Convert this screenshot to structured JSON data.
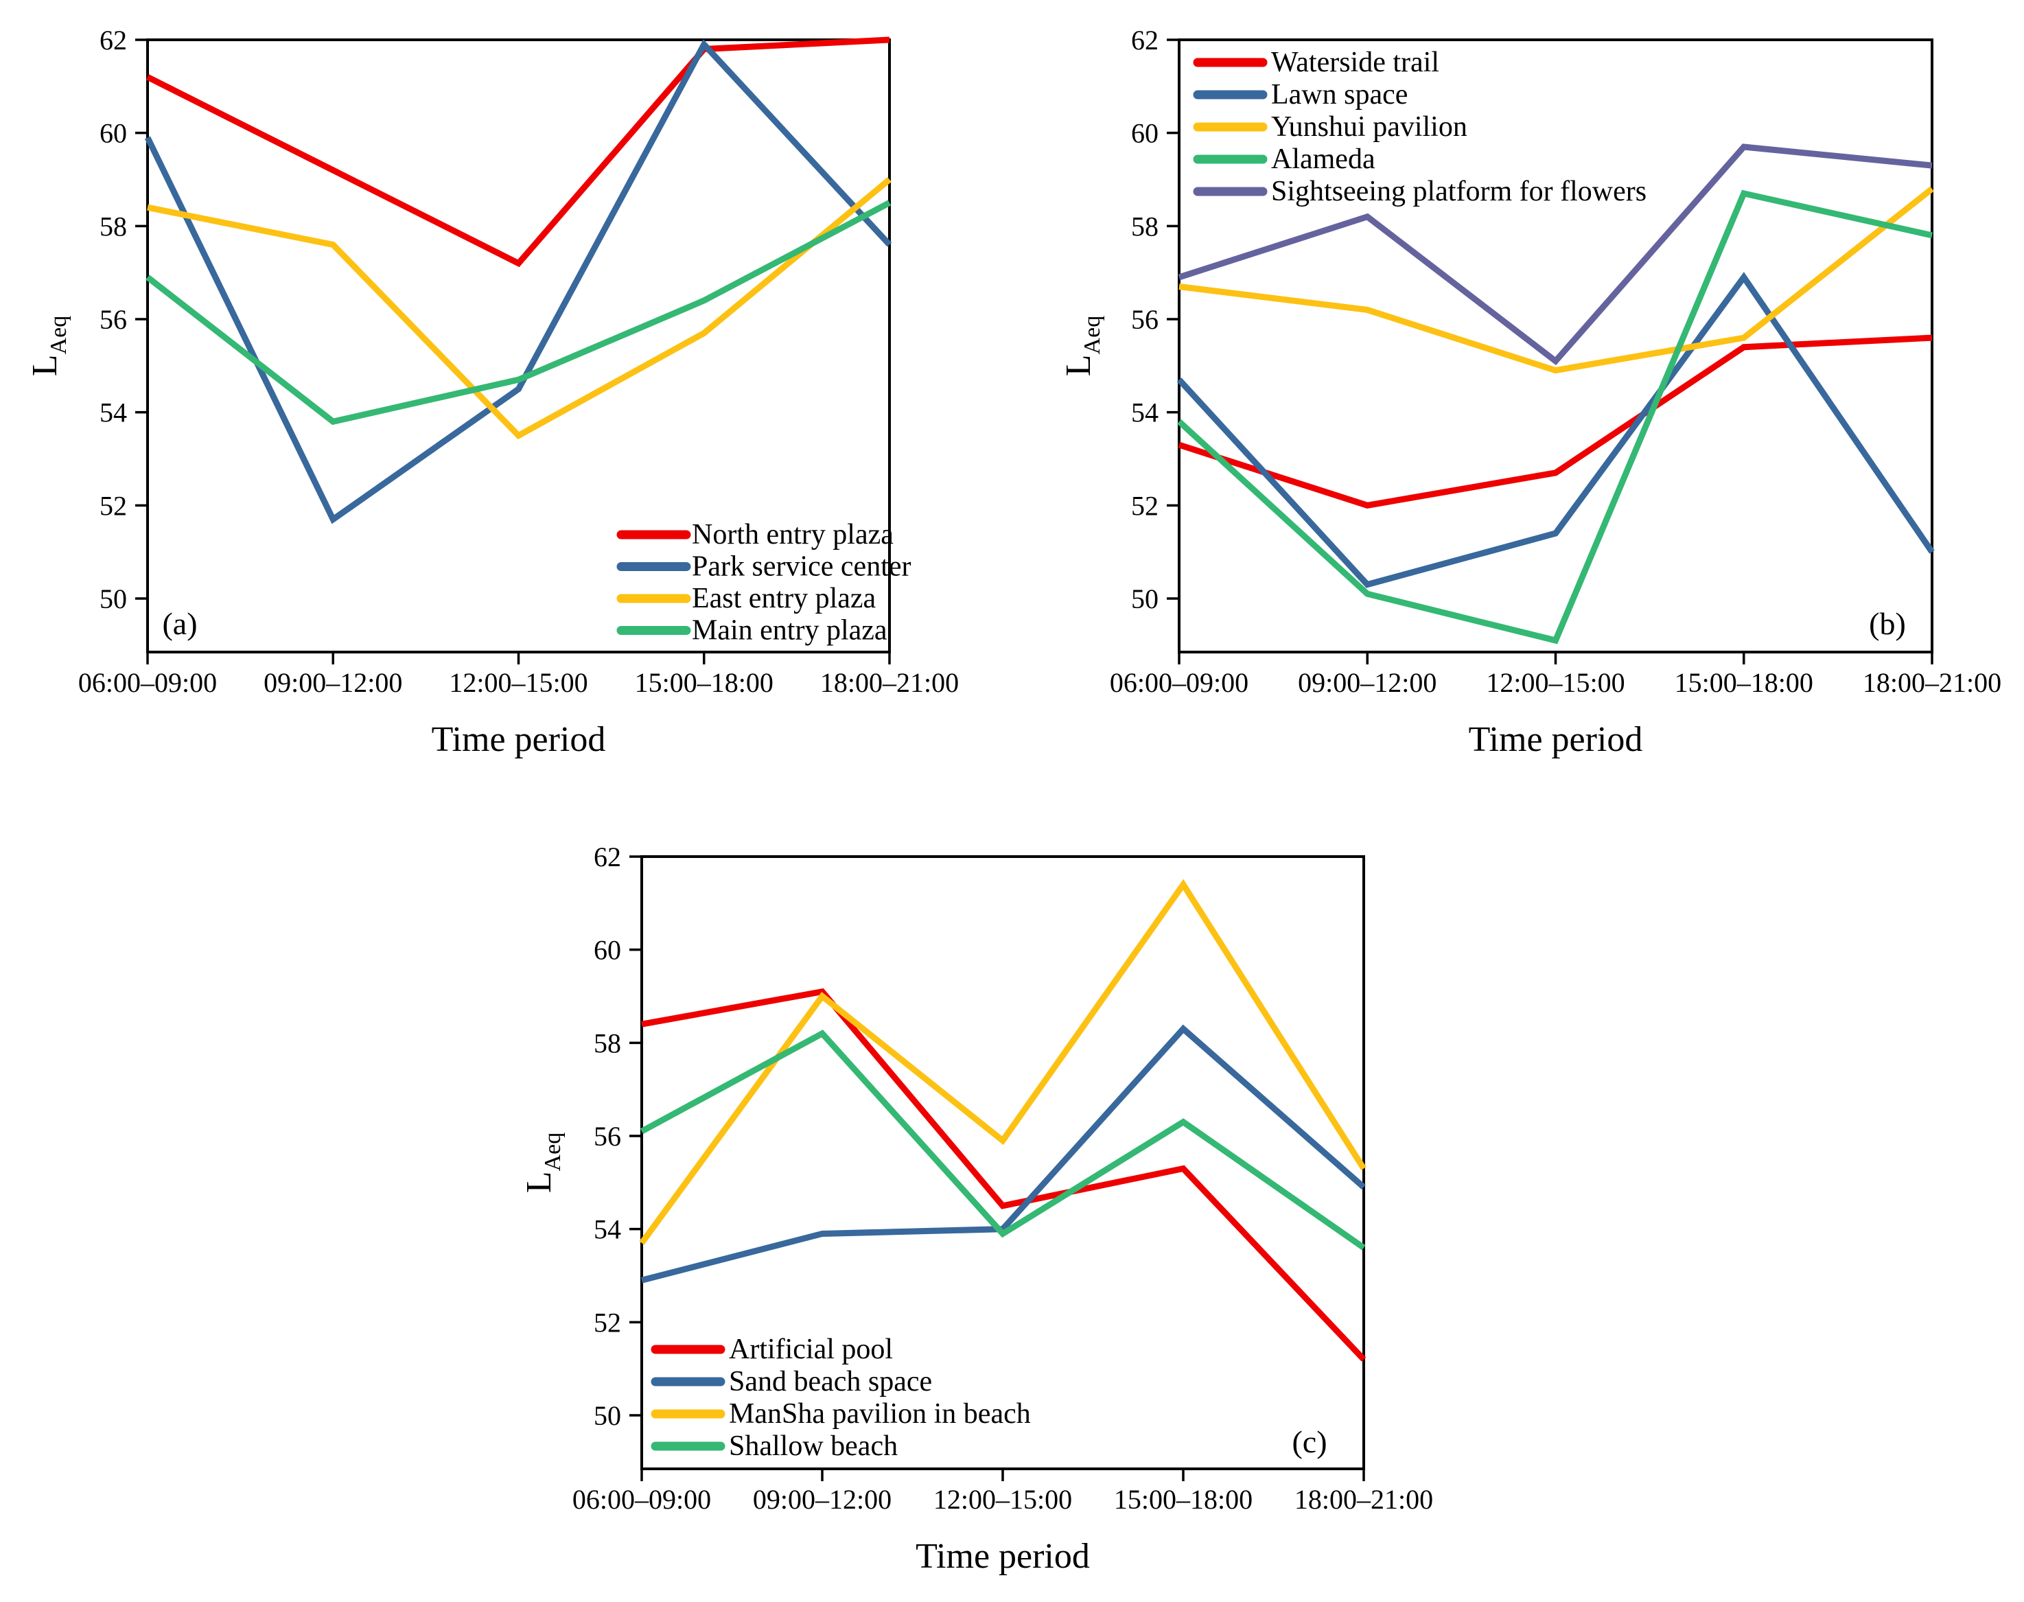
{
  "page": {
    "background": "#ffffff",
    "axis_color": "#000000"
  },
  "chart_data": [
    {
      "id": "a",
      "type": "line",
      "panel_label": "(a)",
      "panel_label_position": "bottom-left",
      "legend_position": "bottom-right",
      "xlabel": "Time period",
      "ylabel_main": "L",
      "ylabel_sub": "Aeq",
      "x_tick_labels": [
        "06:00–09:00",
        "09:00–12:00",
        "12:00–15:00",
        "15:00–18:00",
        "18:00–21:00"
      ],
      "y_ticks": [
        50,
        52,
        54,
        56,
        58,
        60,
        62
      ],
      "ylim": [
        48.85,
        62
      ],
      "grid": "off",
      "series": [
        {
          "name": "North entry plaza",
          "color": "#ee0000",
          "values": [
            61.2,
            59.2,
            57.2,
            61.8,
            62.0
          ]
        },
        {
          "name": "Park service center",
          "color": "#38689c",
          "values": [
            59.9,
            51.7,
            54.5,
            61.9,
            57.6
          ]
        },
        {
          "name": "East entry plaza",
          "color": "#fdc113",
          "values": [
            58.4,
            57.6,
            53.5,
            55.7,
            59.0
          ]
        },
        {
          "name": "Main entry plaza",
          "color": "#34b873",
          "values": [
            56.9,
            53.8,
            54.7,
            56.4,
            58.5
          ]
        }
      ]
    },
    {
      "id": "b",
      "type": "line",
      "panel_label": "(b)",
      "panel_label_position": "bottom-right",
      "legend_position": "top-left",
      "xlabel": "Time period",
      "ylabel_main": "L",
      "ylabel_sub": "Aeq",
      "x_tick_labels": [
        "06:00–09:00",
        "09:00–12:00",
        "12:00–15:00",
        "15:00–18:00",
        "18:00–21:00"
      ],
      "y_ticks": [
        50,
        52,
        54,
        56,
        58,
        60,
        62
      ],
      "ylim": [
        48.85,
        62
      ],
      "grid": "off",
      "series": [
        {
          "name": "Waterside trail",
          "color": "#ee0000",
          "values": [
            53.3,
            52.0,
            52.7,
            55.4,
            55.6
          ]
        },
        {
          "name": "Lawn space",
          "color": "#38689c",
          "values": [
            54.7,
            50.3,
            51.4,
            56.9,
            51.0
          ]
        },
        {
          "name": "Yunshui pavilion",
          "color": "#fdc113",
          "values": [
            56.7,
            56.2,
            54.9,
            55.6,
            58.8
          ]
        },
        {
          "name": "Alameda",
          "color": "#34b873",
          "values": [
            53.8,
            50.1,
            49.1,
            58.7,
            57.8
          ]
        },
        {
          "name": "Sightseeing platform for flowers",
          "color": "#65639e",
          "values": [
            56.9,
            58.2,
            55.1,
            59.7,
            59.3
          ]
        }
      ]
    },
    {
      "id": "c",
      "type": "line",
      "panel_label": "(c)",
      "panel_label_position": "bottom-right",
      "legend_position": "bottom-left",
      "xlabel": "Time period",
      "ylabel_main": "L",
      "ylabel_sub": "Aeq",
      "x_tick_labels": [
        "06:00–09:00",
        "09:00–12:00",
        "12:00–15:00",
        "15:00–18:00",
        "18:00–21:00"
      ],
      "y_ticks": [
        50,
        52,
        54,
        56,
        58,
        60,
        62
      ],
      "ylim": [
        48.85,
        62
      ],
      "grid": "off",
      "series": [
        {
          "name": "Artificial pool",
          "color": "#ee0000",
          "values": [
            58.4,
            59.1,
            54.5,
            55.3,
            51.2
          ]
        },
        {
          "name": "Sand beach space",
          "color": "#38689c",
          "values": [
            52.9,
            53.9,
            54.0,
            58.3,
            54.9
          ]
        },
        {
          "name": "ManSha pavilion in beach",
          "color": "#fdc113",
          "values": [
            53.7,
            59.0,
            55.9,
            61.4,
            55.3
          ]
        },
        {
          "name": "Shallow beach",
          "color": "#34b873",
          "values": [
            56.1,
            58.2,
            53.9,
            56.3,
            53.6
          ]
        }
      ]
    }
  ]
}
